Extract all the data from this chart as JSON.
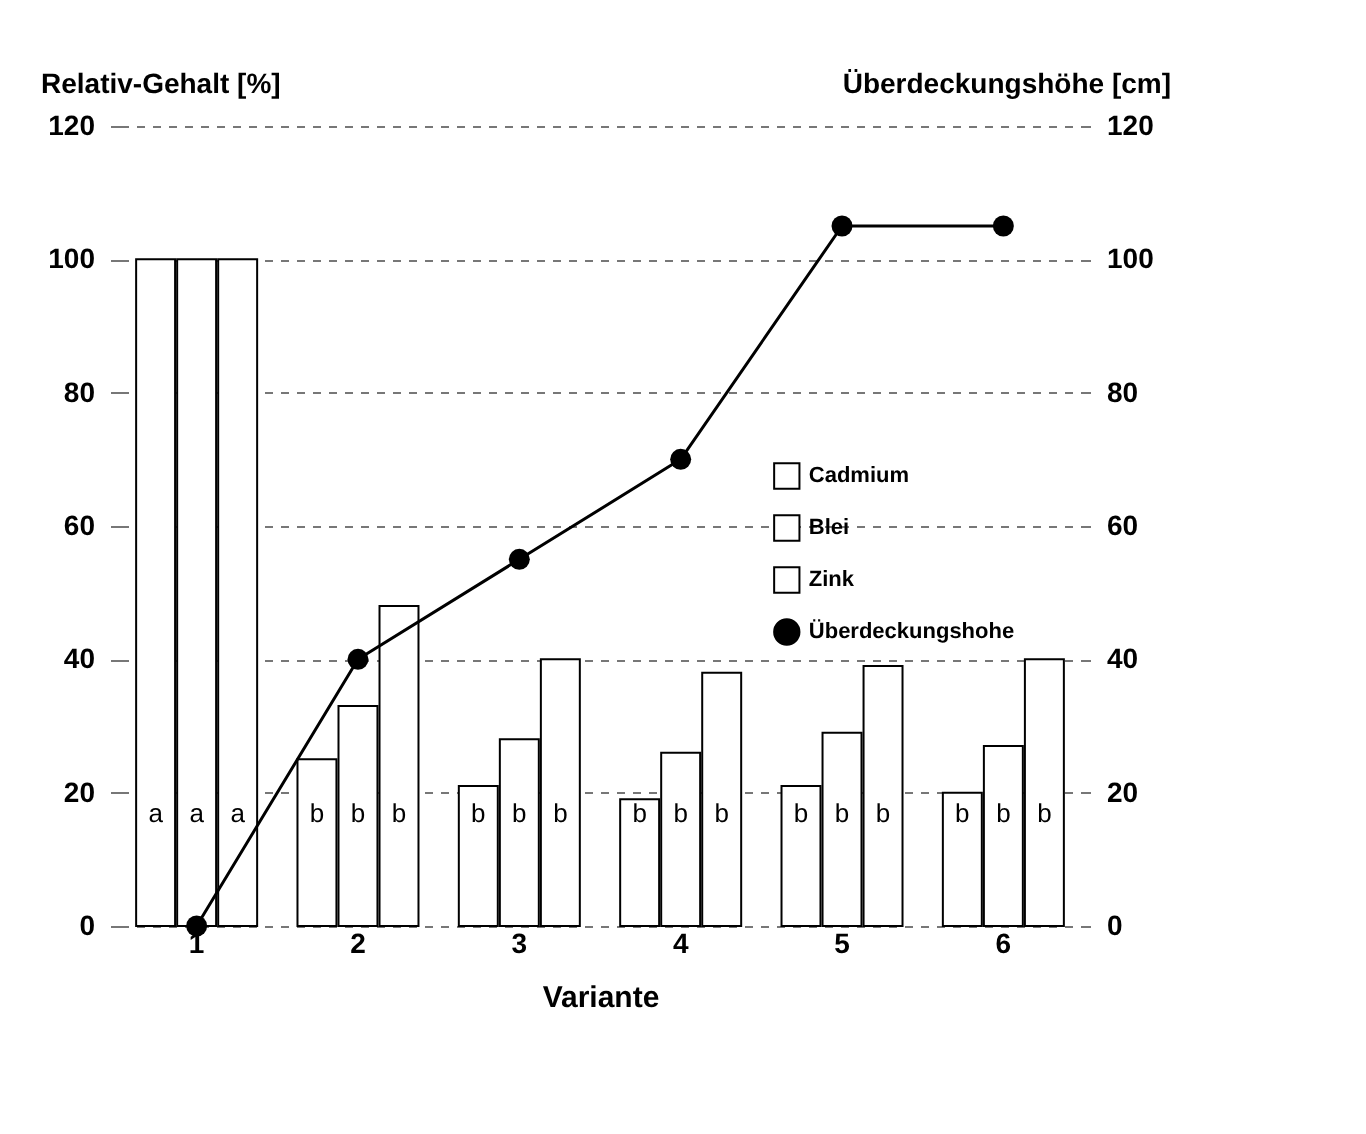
{
  "chart_data": {
    "type": "bar",
    "xlabel": "Variante",
    "ylabel": "Relativ-Gehalt [%]",
    "y2label": "Überdeckungshöhe [cm]",
    "categories": [
      "1",
      "2",
      "3",
      "4",
      "5",
      "6"
    ],
    "series": [
      {
        "name": "Cadmium",
        "color": "#ffffff",
        "values": [
          100,
          25,
          21,
          19,
          21,
          20
        ],
        "value_labels": [
          "a",
          "b",
          "b",
          "b",
          "b",
          "b"
        ]
      },
      {
        "name": "Blei",
        "color": "#ffffff",
        "values": [
          100,
          33,
          28,
          26,
          29,
          27
        ],
        "value_labels": [
          "a",
          "b",
          "b",
          "b",
          "b",
          "b"
        ]
      },
      {
        "name": "Zink",
        "color": "#ffffff",
        "values": [
          100,
          48,
          40,
          38,
          39,
          40
        ],
        "value_labels": [
          "a",
          "b",
          "b",
          "b",
          "b",
          "b"
        ]
      },
      {
        "name": "Überdeckungshohe",
        "type": "line",
        "axis": "y2",
        "color": "#000000",
        "marker": "circle",
        "values": [
          0,
          40,
          55,
          70,
          105,
          105
        ]
      }
    ],
    "ylim": [
      0,
      120
    ],
    "yticks": [
      0,
      20,
      40,
      60,
      80,
      100,
      120
    ],
    "y2lim": [
      0,
      120
    ],
    "y2ticks": [
      0,
      20,
      40,
      60,
      80,
      100,
      120
    ],
    "grid": "y",
    "legend": "right"
  }
}
